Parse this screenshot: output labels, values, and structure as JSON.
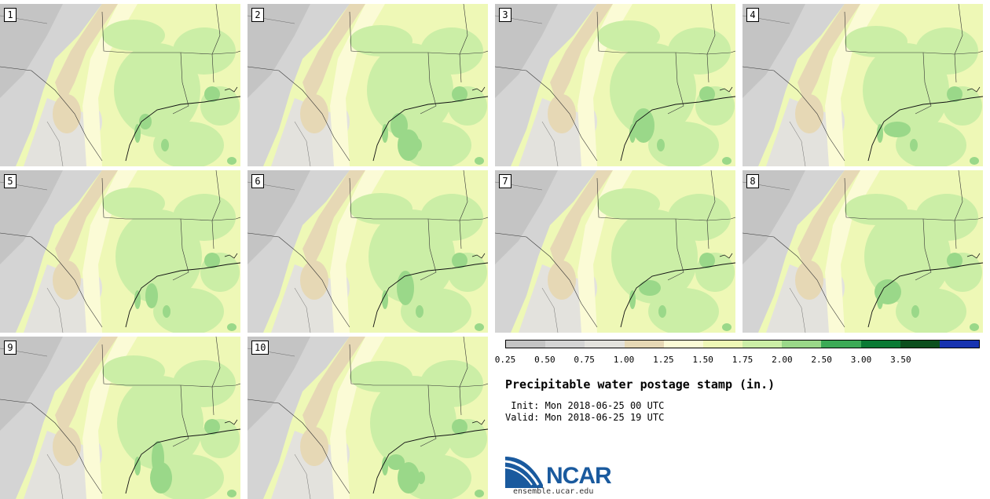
{
  "panels": [
    {
      "label": "1",
      "variant": 0
    },
    {
      "label": "2",
      "variant": 1
    },
    {
      "label": "3",
      "variant": 2
    },
    {
      "label": "4",
      "variant": 3
    },
    {
      "label": "5",
      "variant": 4
    },
    {
      "label": "6",
      "variant": 5
    },
    {
      "label": "7",
      "variant": 6
    },
    {
      "label": "8",
      "variant": 7
    },
    {
      "label": "9",
      "variant": 8
    },
    {
      "label": "10",
      "variant": 9
    }
  ],
  "legend": {
    "ticks": [
      "0.25",
      "0.50",
      "0.75",
      "1.00",
      "1.25",
      "1.50",
      "1.75",
      "2.00",
      "2.50",
      "3.00",
      "3.50"
    ],
    "colors": [
      "#c4c4c4",
      "#d4d4d4",
      "#e3e2dd",
      "#e6d8b5",
      "#fbfbd6",
      "#eef8b6",
      "#cbeea6",
      "#9ad889",
      "#3caa56",
      "#0a7a34",
      "#0c4f1e",
      "#1733b0"
    ]
  },
  "title": "Precipitable water postage stamp (in.)",
  "init_line": " Init: Mon 2018-06-25 00 UTC",
  "valid_line": "Valid: Mon 2018-06-25 19 UTC",
  "logo": {
    "text": "NCAR",
    "url": "ensemble.ucar.edu"
  }
}
